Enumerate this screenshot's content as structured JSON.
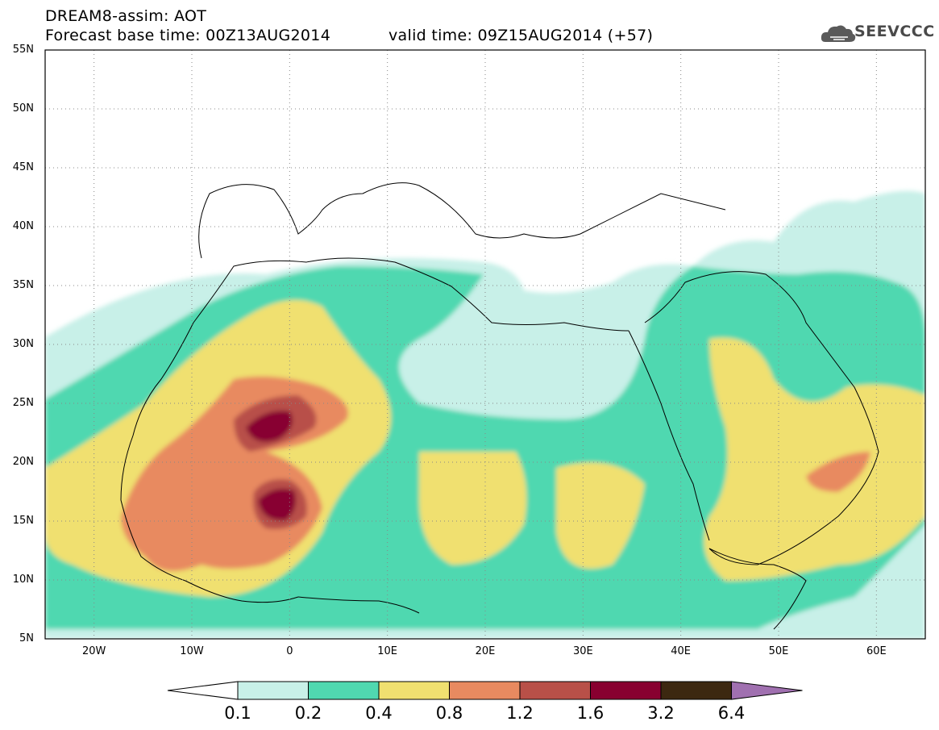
{
  "header": {
    "product": "DREAM8-assim: AOT",
    "base_time": "Forecast base time: 00Z13AUG2014",
    "valid_time": "valid time: 09Z15AUG2014 (+57)"
  },
  "logo": {
    "text": "SEEVCCC",
    "icon": "cloud-logo-icon",
    "color": "#555555"
  },
  "map": {
    "lat_labels": [
      "55N",
      "50N",
      "45N",
      "40N",
      "35N",
      "30N",
      "25N",
      "20N",
      "15N",
      "10N",
      "5N"
    ],
    "lon_labels": [
      "20W",
      "10W",
      "0",
      "10E",
      "20E",
      "30E",
      "40E",
      "50E",
      "60E"
    ],
    "grid": "dotted",
    "extent": {
      "lon_min": -25,
      "lon_max": 65,
      "lat_min": 5,
      "lat_max": 55
    }
  },
  "colorbar": {
    "labels": [
      "0.1",
      "0.2",
      "0.4",
      "0.8",
      "1.2",
      "1.6",
      "3.2",
      "6.4"
    ],
    "colors": [
      "#c8f0e8",
      "#50d8b0",
      "#f0e070",
      "#e88a60",
      "#b85048",
      "#880030",
      "#3c2810",
      "#a070b0"
    ]
  }
}
